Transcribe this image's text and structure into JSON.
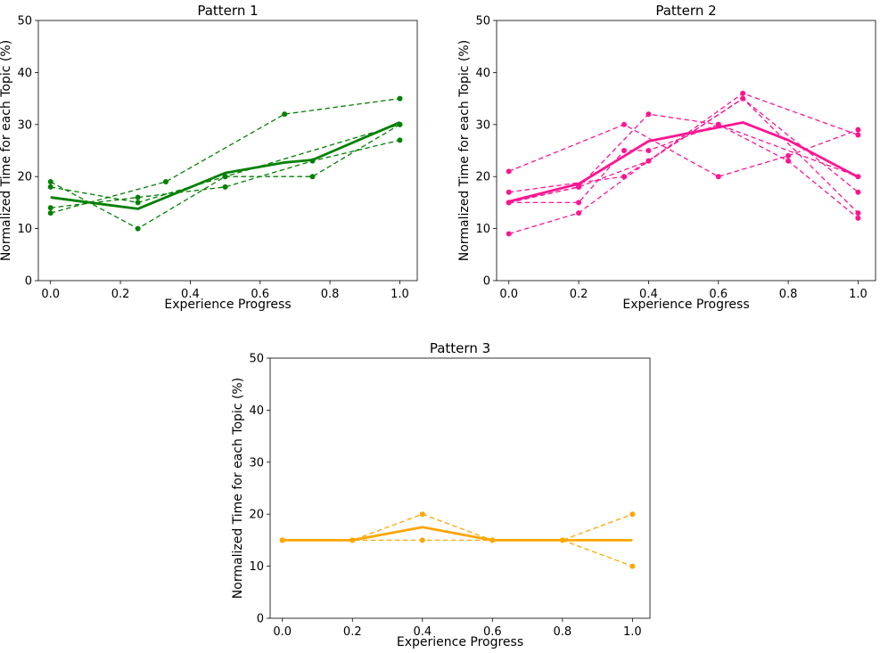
{
  "chart_data": [
    {
      "type": "line",
      "title": "Pattern 1",
      "xlabel": "Experience Progress",
      "ylabel": "Normalized Time for each Topic (%)",
      "xlim": [
        -0.035,
        1.05
      ],
      "ylim": [
        0,
        50
      ],
      "xticks": [
        0.0,
        0.2,
        0.4,
        0.6,
        0.8,
        1.0
      ],
      "xtick_labels": [
        "0.0",
        "0.2",
        "0.4",
        "0.6",
        "0.8",
        "1.0"
      ],
      "yticks": [
        0,
        10,
        20,
        30,
        40,
        50
      ],
      "ytick_labels": [
        "0",
        "10",
        "20",
        "30",
        "40",
        "50"
      ],
      "grid": false,
      "color": "#008000",
      "mean": {
        "x": [
          0.0,
          0.25,
          0.5,
          0.67,
          0.75,
          1.0
        ],
        "y": [
          16,
          13.8,
          20.7,
          22.7,
          23.2,
          30.4
        ]
      },
      "series": [
        {
          "x": [
            0.0,
            0.33,
            0.67,
            1.0
          ],
          "y": [
            13,
            19,
            32,
            35
          ]
        },
        {
          "x": [
            0.0,
            0.25,
            0.5,
            0.75,
            1.0
          ],
          "y": [
            19,
            10,
            20,
            20,
            30
          ]
        },
        {
          "x": [
            0.0,
            0.25,
            0.5,
            0.75,
            1.0
          ],
          "y": [
            14,
            16,
            18,
            23,
            27
          ]
        },
        {
          "x": [
            0.0,
            0.25,
            0.5,
            1.0
          ],
          "y": [
            18,
            15,
            20,
            30
          ]
        }
      ]
    },
    {
      "type": "line",
      "title": "Pattern 2",
      "xlabel": "Experience Progress",
      "ylabel": "Normalized Time for each Topic (%)",
      "xlim": [
        -0.035,
        1.05
      ],
      "ylim": [
        0,
        50
      ],
      "xticks": [
        0.0,
        0.2,
        0.4,
        0.6,
        0.8,
        1.0
      ],
      "xtick_labels": [
        "0.0",
        "0.2",
        "0.4",
        "0.6",
        "0.8",
        "1.0"
      ],
      "yticks": [
        0,
        10,
        20,
        30,
        40,
        50
      ],
      "ytick_labels": [
        "0",
        "10",
        "20",
        "30",
        "40",
        "50"
      ],
      "grid": false,
      "color": "#ff1493",
      "mean": {
        "x": [
          0.0,
          0.2,
          0.4,
          0.67,
          0.8,
          1.0
        ],
        "y": [
          15.2,
          18.6,
          26.8,
          30.4,
          27,
          19.9
        ]
      },
      "series": [
        {
          "x": [
            0.0,
            0.33,
            0.6,
            0.8,
            1.0
          ],
          "y": [
            21,
            30,
            20,
            24,
            29
          ]
        },
        {
          "x": [
            0.0,
            0.2,
            0.4,
            0.67,
            1.0
          ],
          "y": [
            9,
            13,
            23,
            36,
            28
          ]
        },
        {
          "x": [
            0.0,
            0.33,
            0.67,
            1.0
          ],
          "y": [
            17,
            20,
            35,
            13
          ]
        },
        {
          "x": [
            0.0,
            0.2,
            0.4,
            0.6,
            0.8,
            1.0
          ],
          "y": [
            15,
            18,
            32,
            30,
            23,
            12
          ]
        },
        {
          "x": [
            0.0,
            0.2,
            0.33,
            0.4,
            0.6,
            1.0
          ],
          "y": [
            15,
            15,
            25,
            25,
            30,
            20
          ]
        },
        {
          "x": [
            0.0,
            0.2,
            0.4,
            0.67,
            1.0
          ],
          "y": [
            15,
            18,
            23,
            35,
            17
          ]
        }
      ]
    },
    {
      "type": "line",
      "title": "Pattern 3",
      "xlabel": "Experience Progress",
      "ylabel": "Normalized Time for each Topic (%)",
      "xlim": [
        -0.035,
        1.05
      ],
      "ylim": [
        0,
        50
      ],
      "xticks": [
        0.0,
        0.2,
        0.4,
        0.6,
        0.8,
        1.0
      ],
      "xtick_labels": [
        "0.0",
        "0.2",
        "0.4",
        "0.6",
        "0.8",
        "1.0"
      ],
      "yticks": [
        0,
        10,
        20,
        30,
        40,
        50
      ],
      "ytick_labels": [
        "0",
        "10",
        "20",
        "30",
        "40",
        "50"
      ],
      "grid": false,
      "color": "#ffa500",
      "mean": {
        "x": [
          0.0,
          0.2,
          0.4,
          0.6,
          0.8,
          1.0
        ],
        "y": [
          15,
          15,
          17.5,
          15,
          15,
          15
        ]
      },
      "series": [
        {
          "x": [
            0.0,
            0.2,
            0.4,
            0.6,
            0.8,
            1.0
          ],
          "y": [
            15,
            15,
            20,
            15,
            15,
            10
          ]
        },
        {
          "x": [
            0.0,
            0.2,
            0.4,
            0.6,
            0.8,
            1.0
          ],
          "y": [
            15,
            15,
            15,
            15,
            15,
            20
          ]
        }
      ]
    }
  ]
}
